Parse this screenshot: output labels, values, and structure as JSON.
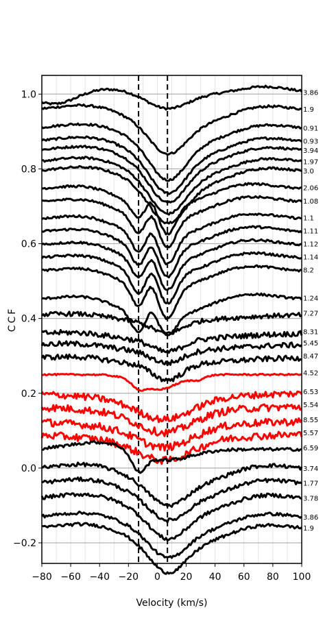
{
  "chart_data": {
    "type": "line",
    "xlabel": "Velocity (km/s)",
    "ylabel": "CCF",
    "xlim": [
      -80,
      100
    ],
    "ylim": [
      -0.255,
      1.05
    ],
    "x_ticks": [
      -80,
      -60,
      -40,
      -20,
      0,
      20,
      40,
      60,
      80,
      100
    ],
    "x_tick_labels": [
      "−80",
      "−60",
      "−40",
      "−20",
      "0",
      "20",
      "40",
      "60",
      "80",
      "100"
    ],
    "y_ticks": [
      -0.2,
      0.0,
      0.2,
      0.4,
      0.6,
      0.8,
      1.0
    ],
    "y_tick_labels": [
      "−0.2",
      "0.0",
      "0.2",
      "0.4",
      "0.6",
      "0.8",
      "1.0"
    ],
    "grid": {
      "y_major": true,
      "x_minor": true
    },
    "vlines": [
      -13,
      7
    ],
    "colors": {
      "black": "#000000",
      "red": "#ff0000",
      "grid": "#b0b0b0"
    },
    "series": [
      {
        "label": "3.86",
        "offset": 1.0,
        "color": "black",
        "shape": "broad",
        "d1": 0.04,
        "noise": 0.003
      },
      {
        "label": "1.9",
        "offset": 0.955,
        "color": "black",
        "shape": "single",
        "d1": 0.07,
        "noise": 0.003
      },
      {
        "label": "0.91",
        "offset": 0.905,
        "color": "black",
        "shape": "single",
        "d1": 0.09,
        "noise": 0.003
      },
      {
        "label": "0.93",
        "offset": 0.87,
        "color": "black",
        "shape": "single",
        "d1": 0.09,
        "noise": 0.003
      },
      {
        "label": "3.94",
        "offset": 0.845,
        "color": "black",
        "shape": "single",
        "d1": 0.09,
        "noise": 0.003
      },
      {
        "label": "1.97",
        "offset": 0.815,
        "color": "black",
        "shape": "single",
        "d1": 0.09,
        "noise": 0.003
      },
      {
        "label": "3.0",
        "offset": 0.79,
        "color": "black",
        "shape": "single",
        "d1": 0.09,
        "noise": 0.003
      },
      {
        "label": "2.06",
        "offset": 0.745,
        "color": "black",
        "shape": "double",
        "d1": 0.06,
        "d2": 0.09,
        "noise": 0.003
      },
      {
        "label": "1.08",
        "offset": 0.71,
        "color": "black",
        "shape": "double",
        "d1": 0.07,
        "d2": 0.09,
        "noise": 0.003
      },
      {
        "label": "1.1",
        "offset": 0.665,
        "color": "black",
        "shape": "double",
        "d1": 0.08,
        "d2": 0.09,
        "noise": 0.003
      },
      {
        "label": "1.11",
        "offset": 0.63,
        "color": "black",
        "shape": "double",
        "d1": 0.08,
        "d2": 0.09,
        "noise": 0.003
      },
      {
        "label": "1.12",
        "offset": 0.595,
        "color": "black",
        "shape": "double",
        "d1": 0.08,
        "d2": 0.09,
        "noise": 0.003
      },
      {
        "label": "1.14",
        "offset": 0.56,
        "color": "black",
        "shape": "double",
        "d1": 0.09,
        "d2": 0.09,
        "noise": 0.003
      },
      {
        "label": "8.2",
        "offset": 0.525,
        "color": "black",
        "shape": "double",
        "d1": 0.09,
        "d2": 0.1,
        "noise": 0.003
      },
      {
        "label": "1.24",
        "offset": 0.45,
        "color": "black",
        "shape": "double",
        "d1": 0.08,
        "d2": 0.06,
        "noise": 0.003
      },
      {
        "label": "7.27",
        "offset": 0.41,
        "color": "black",
        "shape": "noisy",
        "d1": 0.03,
        "noise": 0.006
      },
      {
        "label": "8.31",
        "offset": 0.36,
        "color": "black",
        "shape": "noisy",
        "d1": 0.03,
        "noise": 0.007
      },
      {
        "label": "5.45",
        "offset": 0.33,
        "color": "black",
        "shape": "noisy",
        "d1": 0.03,
        "noise": 0.007
      },
      {
        "label": "8.47",
        "offset": 0.295,
        "color": "black",
        "shape": "noisy",
        "d1": 0.04,
        "noise": 0.007
      },
      {
        "label": "4.52",
        "offset": 0.25,
        "color": "red",
        "shape": "red_broad",
        "d1": 0.04,
        "noise": 0.002
      },
      {
        "label": "6.53",
        "offset": 0.2,
        "color": "red",
        "shape": "red_noisy",
        "d1": 0.05,
        "noise": 0.009
      },
      {
        "label": "5.54",
        "offset": 0.165,
        "color": "red",
        "shape": "red_noisy",
        "d1": 0.05,
        "noise": 0.01
      },
      {
        "label": "8.55",
        "offset": 0.125,
        "color": "red",
        "shape": "red_noisy",
        "d1": 0.05,
        "noise": 0.01
      },
      {
        "label": "5.57",
        "offset": 0.09,
        "color": "red",
        "shape": "red_noisy",
        "d1": 0.05,
        "noise": 0.01
      },
      {
        "label": "6.59",
        "offset": 0.05,
        "color": "black",
        "shape": "blue_dip",
        "d1": 0.05,
        "noise": 0.004
      },
      {
        "label": "3.74",
        "offset": -0.005,
        "color": "black",
        "shape": "single",
        "d1": 0.05,
        "noise": 0.005
      },
      {
        "label": "1.77",
        "offset": -0.045,
        "color": "black",
        "shape": "single",
        "d1": 0.05,
        "noise": 0.005
      },
      {
        "label": "3.78",
        "offset": -0.085,
        "color": "black",
        "shape": "single",
        "d1": 0.06,
        "noise": 0.005
      },
      {
        "label": "3.86",
        "offset": -0.135,
        "color": "black",
        "shape": "single",
        "d1": 0.06,
        "noise": 0.004
      },
      {
        "label": "1.9",
        "offset": -0.165,
        "color": "black",
        "shape": "single",
        "d1": 0.07,
        "noise": 0.004
      }
    ]
  }
}
